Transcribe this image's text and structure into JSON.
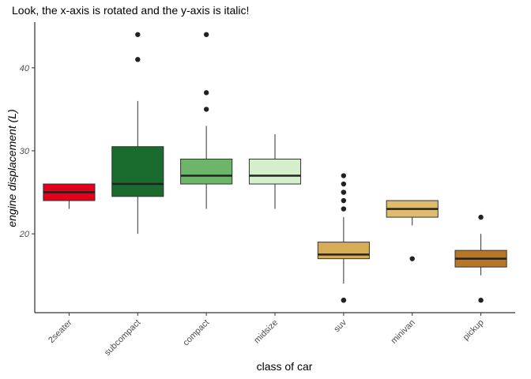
{
  "chart_data": {
    "type": "box",
    "title": "Look, the x-axis is rotated and the y-axis is italic!",
    "xlabel": "class of car",
    "ylabel": "engine displacement (L)",
    "ylim": [
      10.5,
      45.5
    ],
    "yticks": [
      20,
      30,
      40
    ],
    "grid": false,
    "legend": "none",
    "categories": [
      "2seater",
      "subcompact",
      "compact",
      "midsize",
      "suv",
      "minivan",
      "pickup"
    ],
    "boxes": [
      {
        "category": "2seater",
        "fill": "#e3001a",
        "lower_whisker": 23,
        "q1": 24,
        "median": 25,
        "q3": 26,
        "upper_whisker": 26,
        "outliers": []
      },
      {
        "category": "subcompact",
        "fill": "#1a6b2e",
        "lower_whisker": 20,
        "q1": 24.5,
        "median": 26,
        "q3": 30.5,
        "upper_whisker": 36,
        "outliers": [
          41,
          44
        ]
      },
      {
        "category": "compact",
        "fill": "#6cb56b",
        "lower_whisker": 23,
        "q1": 26,
        "median": 27,
        "q3": 29,
        "upper_whisker": 33,
        "outliers": [
          35,
          37,
          44
        ]
      },
      {
        "category": "midsize",
        "fill": "#d5efcc",
        "lower_whisker": 23,
        "q1": 26,
        "median": 27,
        "q3": 29,
        "upper_whisker": 32,
        "outliers": []
      },
      {
        "category": "suv",
        "fill": "#d6ac56",
        "lower_whisker": 14,
        "q1": 17,
        "median": 17.5,
        "q3": 19,
        "upper_whisker": 22,
        "outliers": [
          12,
          12,
          23,
          24,
          25,
          25,
          26,
          27
        ]
      },
      {
        "category": "minivan",
        "fill": "#dfbb6e",
        "lower_whisker": 21,
        "q1": 22,
        "median": 23,
        "q3": 24,
        "upper_whisker": 24,
        "outliers": [
          17
        ]
      },
      {
        "category": "pickup",
        "fill": "#b87726",
        "lower_whisker": 15,
        "q1": 16,
        "median": 17,
        "q3": 18,
        "upper_whisker": 20,
        "outliers": [
          12,
          22
        ]
      }
    ]
  }
}
